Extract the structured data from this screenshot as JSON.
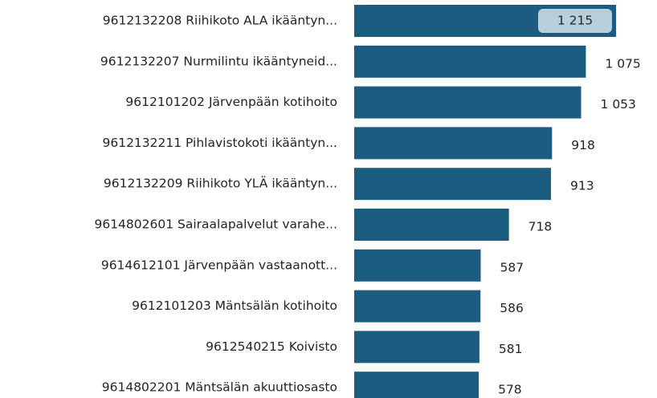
{
  "chart_data": {
    "type": "bar",
    "orientation": "horizontal",
    "color": "#1b5c80",
    "categories": [
      "9612132208 Riihikoto ALA ikääntyn...",
      "9612132207 Nurmilintu ikääntyneid...",
      "9612101202 Järvenpään kotihoito",
      "9612132211 Pihlavistokoti ikääntyn...",
      "9612132209 Riihikoto YLÄ ikääntyn...",
      "9614802601 Sairaalapalvelut varahe...",
      "9614612101 Järvenpään vastaanott...",
      "9612101203 Mäntsälän kotihoito",
      "9612540215 Koivisto",
      "9614802201 Mäntsälän akuuttiosasto"
    ],
    "values": [
      1215,
      1075,
      1053,
      918,
      913,
      718,
      587,
      586,
      581,
      578
    ],
    "value_labels": [
      "1 215",
      "1 075",
      "1 053",
      "918",
      "913",
      "718",
      "587",
      "586",
      "581",
      "578"
    ]
  }
}
